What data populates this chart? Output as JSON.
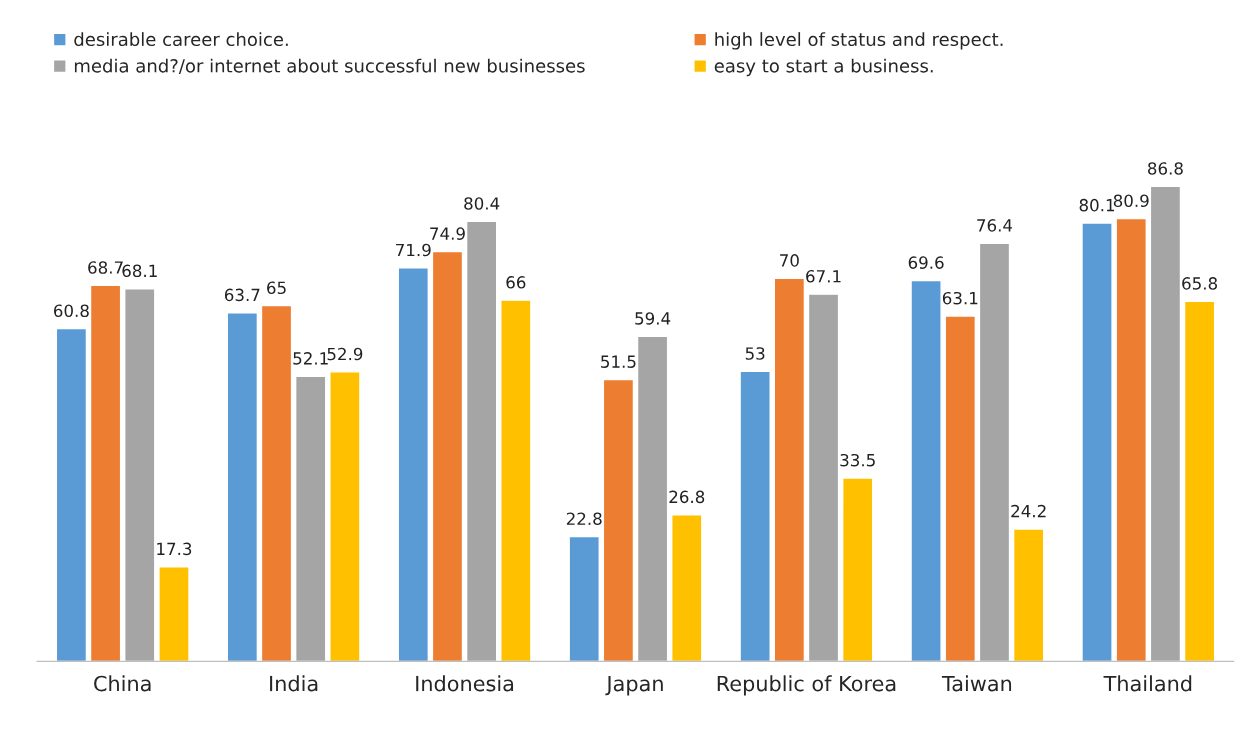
{
  "chart_data": {
    "type": "bar",
    "categories": [
      "China",
      "India",
      "Indonesia",
      "Japan",
      "Republic of Korea",
      "Taiwan",
      "Thailand"
    ],
    "series": [
      {
        "name": "desirable career choice.",
        "color": "#5b9bd5",
        "values": [
          60.8,
          63.7,
          71.9,
          22.8,
          53,
          69.6,
          80.1
        ]
      },
      {
        "name": "high level of status and respect.",
        "color": "#ed7d31",
        "values": [
          68.7,
          65,
          74.9,
          51.5,
          70,
          63.1,
          80.9
        ]
      },
      {
        "name": "media and?/or internet about successful new businesses",
        "color": "#a5a5a5",
        "values": [
          68.1,
          52.1,
          80.4,
          59.4,
          67.1,
          76.4,
          86.8
        ]
      },
      {
        "name": "easy to start a business.",
        "color": "#ffc000",
        "values": [
          17.3,
          52.9,
          66,
          26.8,
          33.5,
          24.2,
          65.8
        ]
      }
    ],
    "data_labels": true,
    "legend": "top",
    "grid": false
  }
}
